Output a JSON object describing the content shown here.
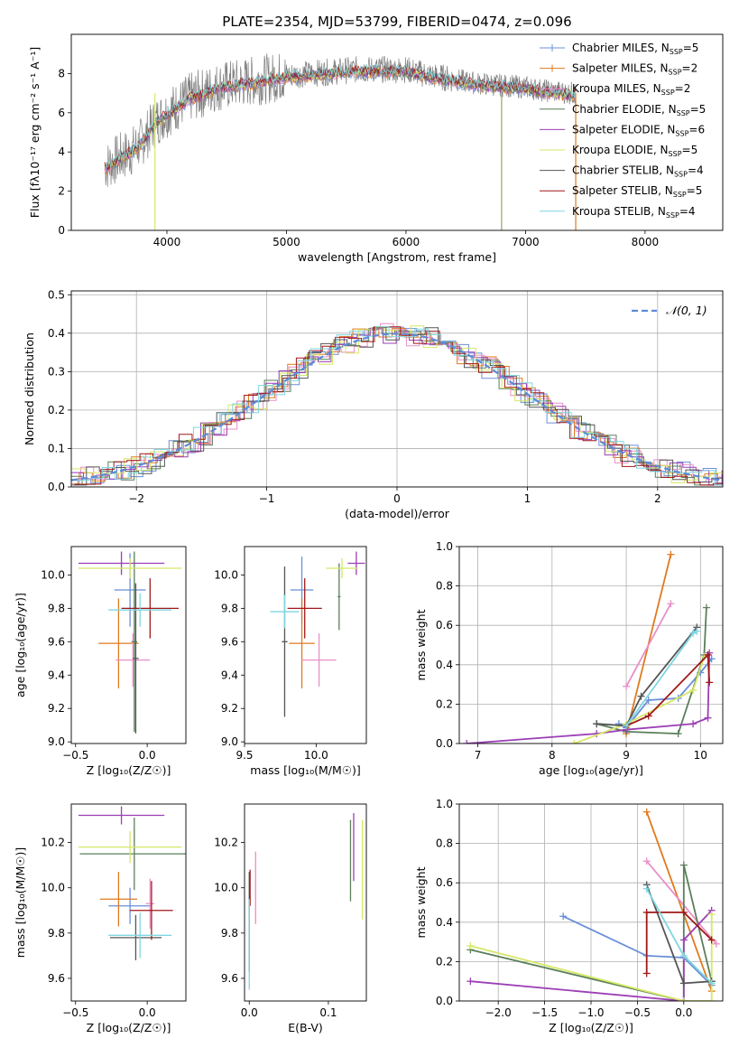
{
  "figure_title": "PLATE=2354, MJD=53799, FIBERID=0474, z=0.096",
  "colors": {
    "Chabrier MILES": "#6a8fd8",
    "Salpeter MILES": "#e07a1f",
    "Kroupa MILES": "#e98fc8",
    "Chabrier ELODIE": "#5a7f5a",
    "Salpeter ELODIE": "#9b3fb5",
    "Kroupa ELODIE": "#d6e866",
    "Chabrier STELIB": "#555555",
    "Salpeter STELIB": "#a01818",
    "Kroupa STELIB": "#7fd6e0"
  },
  "chart_data": [
    {
      "id": "spectrum",
      "type": "line",
      "xlabel": "wavelength [Angstrom, rest frame]",
      "ylabel": "Flux [fλ10⁻¹⁷ erg cm⁻² s⁻¹ A⁻¹]",
      "xlim": [
        3200,
        8650
      ],
      "ylim": [
        0,
        10
      ],
      "xticks": [
        4000,
        5000,
        6000,
        7000,
        8000
      ],
      "yticks": [
        0,
        2,
        4,
        6,
        8
      ],
      "legend_position": "top-right",
      "legend": [
        {
          "label": "Chabrier MILES, N",
          "sub": "SSP",
          "tail": "=5",
          "model": "Chabrier MILES"
        },
        {
          "label": "Salpeter MILES, N",
          "sub": "SSP",
          "tail": "=2",
          "model": "Salpeter MILES"
        },
        {
          "label": "Kroupa MILES, N",
          "sub": "SSP",
          "tail": "=2",
          "model": "Kroupa MILES"
        },
        {
          "label": "Chabrier ELODIE, N",
          "sub": "SSP",
          "tail": "=5",
          "model": "Chabrier ELODIE"
        },
        {
          "label": "Salpeter ELODIE, N",
          "sub": "SSP",
          "tail": "=6",
          "model": "Salpeter ELODIE"
        },
        {
          "label": "Kroupa ELODIE, N",
          "sub": "SSP",
          "tail": "=5",
          "model": "Kroupa ELODIE"
        },
        {
          "label": "Chabrier STELIB, N",
          "sub": "SSP",
          "tail": "=4",
          "model": "Chabrier STELIB"
        },
        {
          "label": "Salpeter STELIB, N",
          "sub": "SSP",
          "tail": "=5",
          "model": "Salpeter STELIB"
        },
        {
          "label": "Kroupa STELIB, N",
          "sub": "SSP",
          "tail": "=4",
          "model": "Kroupa STELIB"
        }
      ],
      "data_series": {
        "name": "data",
        "color": "#808080",
        "x": [
          3500,
          3600,
          3700,
          3800,
          3900,
          4000,
          4100,
          4200,
          4300,
          4400,
          4500,
          4600,
          4700,
          4800,
          4900,
          5000,
          5200,
          5400,
          5600,
          5800,
          6000,
          6200,
          6400,
          6600,
          6800,
          7000,
          7200,
          7400
        ],
        "y": [
          3.3,
          3.7,
          4.0,
          4.6,
          5.5,
          6.0,
          6.4,
          6.8,
          7.0,
          7.3,
          7.4,
          7.5,
          7.6,
          7.7,
          7.8,
          7.9,
          8.0,
          8.1,
          8.2,
          8.2,
          8.2,
          7.9,
          7.7,
          7.5,
          7.4,
          7.3,
          7.1,
          7.0
        ]
      },
      "model_series": {
        "x": [
          3500,
          3600,
          3700,
          3800,
          3900,
          4000,
          4100,
          4200,
          4300,
          4400,
          4500,
          4600,
          4700,
          4800,
          4900,
          5000,
          5200,
          5400,
          5600,
          5800,
          6000,
          6200,
          6400,
          6600,
          6800,
          7000,
          7200,
          7400
        ],
        "y": [
          3.2,
          3.6,
          4.0,
          4.5,
          5.4,
          5.9,
          6.3,
          6.7,
          6.9,
          7.2,
          7.3,
          7.4,
          7.5,
          7.6,
          7.7,
          7.8,
          7.9,
          8.0,
          8.1,
          8.1,
          8.1,
          7.8,
          7.6,
          7.4,
          7.3,
          7.2,
          7.0,
          6.9
        ]
      }
    },
    {
      "id": "residuals",
      "type": "line",
      "xlabel": "(data-model)/error",
      "ylabel": "Normed distribution",
      "xlim": [
        -2.5,
        2.5
      ],
      "ylim": [
        0,
        0.51
      ],
      "xticks": [
        -2,
        -1,
        0,
        1,
        2
      ],
      "xtick_labels": [
        "−2",
        "−1",
        "0",
        "1",
        "2"
      ],
      "yticks": [
        0.0,
        0.1,
        0.2,
        0.3,
        0.4,
        0.5
      ],
      "ytick_labels": [
        "0.0",
        "0.1",
        "0.2",
        "0.3",
        "0.4",
        "0.5"
      ],
      "grid": true,
      "legend_label": "𝒩(0, 1)",
      "legend_position": "top-right",
      "gaussian": {
        "mean": 0,
        "sigma": 1,
        "color": "#5b8ad8"
      },
      "hist_bin_width": 0.1
    },
    {
      "id": "age_vs_Z",
      "type": "scatter",
      "xlabel": "Z [log₁₀(Z/Z☉)]",
      "ylabel": "age  [log₁₀(age/yr)]",
      "xlim": [
        -0.53,
        0.27
      ],
      "ylim": [
        8.99,
        10.17
      ],
      "xticks": [
        -0.5,
        0.0
      ],
      "xtick_labels": [
        "−0.5",
        "0.0"
      ],
      "yticks": [
        9.0,
        9.2,
        9.4,
        9.6,
        9.8,
        10.0
      ],
      "ytick_labels": [
        "9.0",
        "9.2",
        "9.4",
        "9.6",
        "9.8",
        "10.0"
      ],
      "points": [
        {
          "model": "Chabrier MILES",
          "x": -0.12,
          "xerr": 0.11,
          "y": 9.91,
          "yerr": 0.22
        },
        {
          "model": "Salpeter MILES",
          "x": -0.2,
          "xerr": 0.14,
          "y": 9.59,
          "yerr": 0.27
        },
        {
          "model": "Kroupa MILES",
          "x": -0.1,
          "xerr": 0.12,
          "y": 9.49,
          "yerr": 0.16
        },
        {
          "model": "Chabrier ELODIE",
          "x": -0.09,
          "xerr": 0.02,
          "y": 9.6,
          "yerr": 0.54
        },
        {
          "model": "Salpeter ELODIE",
          "x": -0.18,
          "xerr": 0.3,
          "y": 10.07,
          "yerr": 0.07
        },
        {
          "model": "Kroupa ELODIE",
          "x": -0.12,
          "xerr": 0.36,
          "y": 10.04,
          "yerr": 0.06
        },
        {
          "model": "Chabrier STELIB",
          "x": -0.08,
          "xerr": 0.02,
          "y": 9.5,
          "yerr": 0.45
        },
        {
          "model": "Salpeter STELIB",
          "x": 0.02,
          "xerr": 0.2,
          "y": 9.8,
          "yerr": 0.18
        },
        {
          "model": "Kroupa STELIB",
          "x": -0.05,
          "xerr": 0.22,
          "y": 9.79,
          "yerr": 0.1
        }
      ]
    },
    {
      "id": "age_vs_mass",
      "type": "scatter",
      "xlabel": "mass [log₁₀(M/M☉)]",
      "ylabel": "",
      "xlim": [
        9.5,
        10.35
      ],
      "ylim": [
        8.99,
        10.17
      ],
      "xticks": [
        9.5,
        10.0
      ],
      "xtick_labels": [
        "9.5",
        "10.0"
      ],
      "yticks": [
        9.0,
        9.2,
        9.4,
        9.6,
        9.8,
        10.0
      ],
      "ytick_labels": [
        "9.0",
        "9.2",
        "9.4",
        "9.6",
        "9.8",
        "10.0"
      ],
      "points": [
        {
          "model": "Chabrier MILES",
          "x": 9.9,
          "xerr": 0.08,
          "y": 9.91,
          "yerr": 0.2
        },
        {
          "model": "Salpeter MILES",
          "x": 9.9,
          "xerr": 0.09,
          "y": 9.59,
          "yerr": 0.27
        },
        {
          "model": "Kroupa MILES",
          "x": 10.02,
          "xerr": 0.12,
          "y": 9.49,
          "yerr": 0.16
        },
        {
          "model": "Chabrier ELODIE",
          "x": 10.16,
          "xerr": 0.01,
          "y": 9.87,
          "yerr": 0.2
        },
        {
          "model": "Salpeter ELODIE",
          "x": 10.28,
          "xerr": 0.06,
          "y": 10.07,
          "yerr": 0.07
        },
        {
          "model": "Kroupa ELODIE",
          "x": 10.18,
          "xerr": 0.11,
          "y": 10.04,
          "yerr": 0.06
        },
        {
          "model": "Chabrier STELIB",
          "x": 9.78,
          "xerr": 0.02,
          "y": 9.6,
          "yerr": 0.45
        },
        {
          "model": "Salpeter STELIB",
          "x": 9.92,
          "xerr": 0.12,
          "y": 9.8,
          "yerr": 0.18
        },
        {
          "model": "Kroupa STELIB",
          "x": 9.78,
          "xerr": 0.1,
          "y": 9.78,
          "yerr": 0.1
        }
      ]
    },
    {
      "id": "mass_weight_vs_age",
      "type": "line",
      "xlabel": "age  [log₁₀(age/yr)]",
      "ylabel": "mass weight",
      "xlim": [
        6.75,
        10.3
      ],
      "ylim": [
        0,
        1
      ],
      "xticks": [
        7,
        8,
        9,
        10
      ],
      "yticks": [
        0.0,
        0.2,
        0.4,
        0.6,
        0.8,
        1.0
      ],
      "ytick_labels": [
        "0.0",
        "0.2",
        "0.4",
        "0.6",
        "0.8",
        "1.0"
      ],
      "grid": true,
      "series": [
        {
          "model": "Chabrier MILES",
          "x": [
            8.9,
            9.0,
            9.3,
            9.7,
            10.0,
            10.15
          ],
          "y": [
            0.1,
            0.08,
            0.22,
            0.23,
            0.36,
            0.43
          ]
        },
        {
          "model": "Salpeter MILES",
          "x": [
            9.0,
            9.6
          ],
          "y": [
            0.05,
            0.96
          ]
        },
        {
          "model": "Kroupa MILES",
          "x": [
            9.0,
            9.6
          ],
          "y": [
            0.29,
            0.71
          ]
        },
        {
          "model": "Chabrier ELODIE",
          "x": [
            8.6,
            9.0,
            9.7,
            10.05,
            10.08
          ],
          "y": [
            0.1,
            0.06,
            0.05,
            0.45,
            0.69
          ]
        },
        {
          "model": "Salpeter ELODIE",
          "x": [
            6.85,
            8.6,
            9.0,
            9.9,
            10.1,
            10.12
          ],
          "y": [
            0.0,
            0.05,
            0.07,
            0.1,
            0.13,
            0.46
          ]
        },
        {
          "model": "Kroupa ELODIE",
          "x": [
            8.3,
            9.0,
            9.9,
            10.05
          ],
          "y": [
            0.0,
            0.1,
            0.27,
            0.44
          ]
        },
        {
          "model": "Chabrier STELIB",
          "x": [
            8.6,
            9.0,
            9.2,
            9.95
          ],
          "y": [
            0.1,
            0.09,
            0.24,
            0.59
          ]
        },
        {
          "model": "Salpeter STELIB",
          "x": [
            9.0,
            9.3,
            10.1,
            10.12
          ],
          "y": [
            0.09,
            0.14,
            0.45,
            0.31
          ]
        },
        {
          "model": "Kroupa STELIB",
          "x": [
            9.0,
            9.9,
            9.95
          ],
          "y": [
            0.09,
            0.56,
            0.57
          ]
        }
      ]
    },
    {
      "id": "mass_vs_Z",
      "type": "scatter",
      "xlabel": "Z [log₁₀(Z/Z☉)]",
      "ylabel": "mass [log₁₀(M/M☉)]",
      "xlim": [
        -0.53,
        0.27
      ],
      "ylim": [
        9.5,
        10.37
      ],
      "xticks": [
        -0.5,
        0.0
      ],
      "xtick_labels": [
        "−0.5",
        "0.0"
      ],
      "yticks": [
        9.6,
        9.8,
        10.0,
        10.2
      ],
      "ytick_labels": [
        "9.6",
        "9.8",
        "10.0",
        "10.2"
      ],
      "points": [
        {
          "model": "Chabrier MILES",
          "x": -0.12,
          "xerr": 0.15,
          "y": 9.92,
          "yerr": 0.08
        },
        {
          "model": "Salpeter MILES",
          "x": -0.2,
          "xerr": 0.13,
          "y": 9.95,
          "yerr": 0.12
        },
        {
          "model": "Kroupa MILES",
          "x": 0.02,
          "xerr": 0.03,
          "y": 9.93,
          "yerr": 0.11
        },
        {
          "model": "Chabrier ELODIE",
          "x": -0.09,
          "xerr": 0.38,
          "y": 10.15,
          "yerr": 0.16
        },
        {
          "model": "Salpeter ELODIE",
          "x": -0.18,
          "xerr": 0.3,
          "y": 10.32,
          "yerr": 0.04
        },
        {
          "model": "Kroupa ELODIE",
          "x": -0.12,
          "xerr": 0.36,
          "y": 10.18,
          "yerr": 0.07
        },
        {
          "model": "Chabrier STELIB",
          "x": -0.08,
          "xerr": 0.18,
          "y": 9.78,
          "yerr": 0.1
        },
        {
          "model": "Salpeter STELIB",
          "x": 0.03,
          "xerr": 0.15,
          "y": 9.9,
          "yerr": 0.13
        },
        {
          "model": "Kroupa STELIB",
          "x": -0.05,
          "xerr": 0.22,
          "y": 9.79,
          "yerr": 0.1
        }
      ]
    },
    {
      "id": "mass_vs_ebv",
      "type": "scatter",
      "xlabel": "E(B-V)",
      "ylabel": "",
      "xlim": [
        -0.006,
        0.148
      ],
      "ylim": [
        9.5,
        10.37
      ],
      "xticks": [
        0.0,
        0.1
      ],
      "xtick_labels": [
        "0.0",
        "0.1"
      ],
      "yticks": [
        9.6,
        9.8,
        10.0,
        10.2
      ],
      "ytick_labels": [
        "9.6",
        "9.8",
        "10.0",
        "10.2"
      ],
      "points": [
        {
          "model": "Kroupa MILES",
          "x": 0.008,
          "xerr": 0.0,
          "y": 10.0,
          "yerr": 0.16
        },
        {
          "model": "Chabrier ELODIE",
          "x": 0.128,
          "xerr": 0.0,
          "y": 10.12,
          "yerr": 0.18
        },
        {
          "model": "Salpeter ELODIE",
          "x": 0.132,
          "xerr": 0.0,
          "y": 10.18,
          "yerr": 0.15
        },
        {
          "model": "Kroupa ELODIE",
          "x": 0.143,
          "xerr": 0.0,
          "y": 10.08,
          "yerr": 0.22
        },
        {
          "model": "Chabrier STELIB",
          "x": 0.0,
          "xerr": 0.0,
          "y": 9.85,
          "yerr": 0.22
        },
        {
          "model": "Salpeter STELIB",
          "x": 0.001,
          "xerr": 0.0,
          "y": 10.0,
          "yerr": 0.08
        },
        {
          "model": "Kroupa STELIB",
          "x": 0.0,
          "xerr": 0.0,
          "y": 9.75,
          "yerr": 0.2
        }
      ]
    },
    {
      "id": "mass_weight_vs_Z",
      "type": "line",
      "xlabel": "Z [log₁₀(Z/Z☉)]",
      "ylabel": "mass weight",
      "xlim": [
        -2.42,
        0.42
      ],
      "ylim": [
        0,
        1
      ],
      "xticks": [
        -2.0,
        -1.5,
        -1.0,
        -0.5,
        0.0
      ],
      "xtick_labels": [
        "−2.0",
        "−1.5",
        "−1.0",
        "−0.5",
        "0.0"
      ],
      "yticks": [
        0.0,
        0.2,
        0.4,
        0.6,
        0.8,
        1.0
      ],
      "ytick_labels": [
        "0.0",
        "0.2",
        "0.4",
        "0.6",
        "0.8",
        "1.0"
      ],
      "grid": true,
      "series": [
        {
          "model": "Chabrier MILES",
          "x": [
            -1.3,
            -0.4,
            0.0,
            0.3
          ],
          "y": [
            0.43,
            0.23,
            0.22,
            0.08
          ]
        },
        {
          "model": "Salpeter MILES",
          "x": [
            -0.4,
            0.3
          ],
          "y": [
            0.96,
            0.05
          ]
        },
        {
          "model": "Kroupa MILES",
          "x": [
            -0.4,
            0.35
          ],
          "y": [
            0.71,
            0.29
          ]
        },
        {
          "model": "Chabrier ELODIE",
          "x": [
            -2.3,
            0.0,
            0.0,
            0.3
          ],
          "y": [
            0.26,
            0.0,
            0.69,
            0.1
          ]
        },
        {
          "model": "Salpeter ELODIE",
          "x": [
            -2.3,
            0.0,
            0.0,
            0.3
          ],
          "y": [
            0.1,
            0.0,
            0.31,
            0.46
          ]
        },
        {
          "model": "Kroupa ELODIE",
          "x": [
            -2.3,
            0.0,
            0.3,
            0.3
          ],
          "y": [
            0.28,
            0.0,
            0.0,
            0.44
          ]
        },
        {
          "model": "Chabrier STELIB",
          "x": [
            -0.4,
            0.0,
            0.3
          ],
          "y": [
            0.59,
            0.09,
            0.1
          ]
        },
        {
          "model": "Salpeter STELIB",
          "x": [
            -0.4,
            -0.4,
            0.0,
            0.3
          ],
          "y": [
            0.14,
            0.45,
            0.45,
            0.31
          ]
        },
        {
          "model": "Kroupa STELIB",
          "x": [
            -0.4,
            0.0,
            0.3
          ],
          "y": [
            0.57,
            0.23,
            0.09
          ]
        }
      ]
    }
  ]
}
